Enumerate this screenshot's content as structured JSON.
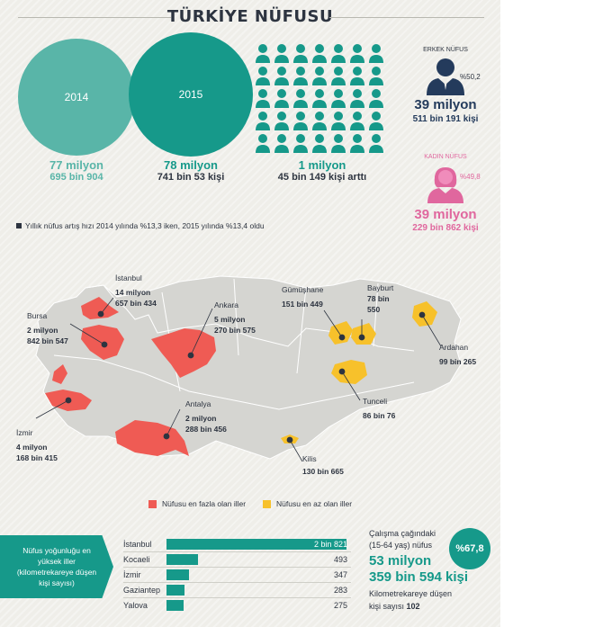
{
  "title": "TÜRKİYE NÜFUSU",
  "y2014": {
    "label": "2014",
    "big": "77 milyon",
    "small": "695 bin 904"
  },
  "y2015": {
    "label": "2015",
    "big": "78 milyon",
    "small": "741 bin 53 kişi"
  },
  "diff": {
    "big": "1 milyon",
    "small": "45 bin 149 kişi arttı"
  },
  "male": {
    "label": "ERKEK NÜFUS",
    "pct": "%50,2",
    "big": "39 milyon",
    "small": "511 bin 191 kişi",
    "color": "#243b5c"
  },
  "female": {
    "label": "KADIN NÜFUS",
    "pct": "%49,8",
    "big": "39 milyon",
    "small": "229 bin 862 kişi",
    "color": "#e0679e"
  },
  "note": "Yıllık nüfus artış hızı 2014 yılında %13,3 iken, 2015 yılında %13,4 oldu",
  "colors": {
    "teal": "#16998a",
    "teal_light": "#59b5a8",
    "red": "#ef5b54",
    "yellow": "#f7c12b",
    "map_gray": "#d5d5d1",
    "dark": "#2d3440"
  },
  "map": {
    "istanbul": {
      "name": "İstanbul",
      "l1": "14 milyon",
      "l2": "657 bin 434"
    },
    "bursa": {
      "name": "Bursa",
      "l1": "2 milyon",
      "l2": "842 bin 547"
    },
    "izmir": {
      "name": "İzmir",
      "l1": "4 milyon",
      "l2": "168 bin 415"
    },
    "ankara": {
      "name": "Ankara",
      "l1": "5 milyon",
      "l2": "270 bin 575"
    },
    "antalya": {
      "name": "Antalya",
      "l1": "2 milyon",
      "l2": "288 bin 456"
    },
    "gumushane": {
      "name": "Gümüşhane",
      "l1": "151 bin 449"
    },
    "bayburt": {
      "name": "Bayburt",
      "l1": "78 bin",
      "l2": "550"
    },
    "ardahan": {
      "name": "Ardahan",
      "l1": "99 bin 265"
    },
    "tunceli": {
      "name": "Tunceli",
      "l1": "86 bin 76"
    },
    "kilis": {
      "name": "Kilis",
      "l1": "130 bin 665"
    }
  },
  "legend": {
    "most": "Nüfusu en fazla olan iller",
    "least": "Nüfusu en az olan iller"
  },
  "density": {
    "banner": "Nüfus yoğunluğu en yüksek iller (kilometrekareye düşen kişi sayısı)",
    "rows": [
      {
        "name": "İstanbul",
        "value": 2821,
        "label": "2 bin 821"
      },
      {
        "name": "Kocaeli",
        "value": 493,
        "label": "493"
      },
      {
        "name": "İzmir",
        "value": 347,
        "label": "347"
      },
      {
        "name": "Gaziantep",
        "value": 283,
        "label": "283"
      },
      {
        "name": "Yalova",
        "value": 275,
        "label": "275"
      }
    ]
  },
  "work": {
    "label1": "Çalışma çağındaki",
    "label2": "(15-64 yaş) nüfus",
    "pct": "%67,8",
    "big1": "53 milyon",
    "big2": "359 bin 594 kişi",
    "label3": "Kilometrekareye düşen",
    "label4": "kişi sayısı",
    "value4": "102"
  }
}
